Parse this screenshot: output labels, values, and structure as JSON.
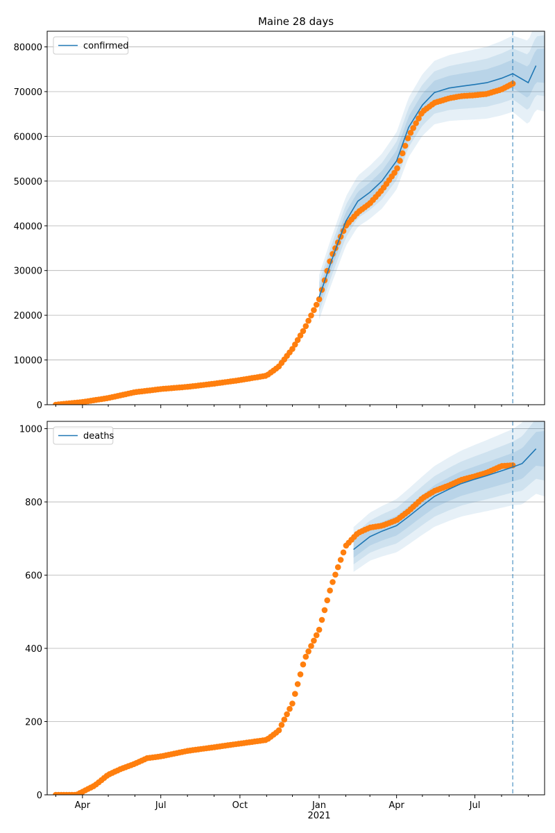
{
  "chart_data": [
    {
      "type": "line",
      "title": "Maine 28 days",
      "xlabel": "",
      "ylabel": "",
      "ylim": [
        0,
        83500
      ],
      "y_ticks": [
        0,
        10000,
        20000,
        30000,
        40000,
        50000,
        60000,
        70000,
        80000
      ],
      "x_ticks": [
        "",
        "",
        "",
        "",
        "",
        "",
        ""
      ],
      "grid": "horizontal",
      "legend": {
        "position": "top-left",
        "entries": [
          "confirmed"
        ]
      },
      "forecast_start": "2021-08-14",
      "colors": {
        "model": "#1f77b4",
        "observed": "#ff7f0e",
        "band": "#1f77b4"
      },
      "series": [
        {
          "name": "confirmed",
          "kind": "model-median",
          "x": [
            "2021-01-01",
            "2021-01-15",
            "2021-02-01",
            "2021-02-15",
            "2021-03-01",
            "2021-03-15",
            "2021-04-01",
            "2021-04-15",
            "2021-05-01",
            "2021-05-15",
            "2021-06-01",
            "2021-06-15",
            "2021-07-01",
            "2021-07-15",
            "2021-08-01",
            "2021-08-14",
            "2021-09-01",
            "2021-09-10"
          ],
          "values": [
            24000,
            32000,
            41000,
            45500,
            47500,
            50000,
            54500,
            62000,
            67000,
            69800,
            70800,
            71200,
            71600,
            72000,
            73000,
            74000,
            72000,
            75800
          ]
        },
        {
          "name": "",
          "kind": "observed",
          "x": [
            "2020-03-01",
            "2020-04-01",
            "2020-05-01",
            "2020-06-01",
            "2020-07-01",
            "2020-08-01",
            "2020-09-01",
            "2020-10-01",
            "2020-11-01",
            "2020-11-15",
            "2020-12-01",
            "2020-12-15",
            "2021-01-01",
            "2021-01-15",
            "2021-02-01",
            "2021-02-15",
            "2021-03-01",
            "2021-03-15",
            "2021-04-01",
            "2021-04-15",
            "2021-05-01",
            "2021-05-15",
            "2021-06-01",
            "2021-06-15",
            "2021-07-01",
            "2021-07-15",
            "2021-08-01",
            "2021-08-14"
          ],
          "values": [
            0,
            600,
            1500,
            2800,
            3500,
            4000,
            4700,
            5500,
            6500,
            8500,
            12500,
            17000,
            23500,
            33000,
            40000,
            43000,
            45000,
            48000,
            52500,
            60000,
            65500,
            67500,
            68500,
            69000,
            69200,
            69500,
            70500,
            71800
          ]
        }
      ]
    },
    {
      "type": "line",
      "title": "",
      "xlabel": "",
      "ylabel": "",
      "ylim": [
        0,
        1020
      ],
      "y_ticks": [
        0,
        200,
        400,
        600,
        800,
        1000
      ],
      "x_ticks": [
        "Apr",
        "Jul",
        "Oct",
        "Jan\n2021",
        "Apr",
        "Jul"
      ],
      "grid": "horizontal",
      "legend": {
        "position": "top-left",
        "entries": [
          "deaths"
        ]
      },
      "forecast_start": "2021-08-14",
      "colors": {
        "model": "#1f77b4",
        "observed": "#ff7f0e",
        "band": "#1f77b4"
      },
      "series": [
        {
          "name": "deaths",
          "kind": "model-median",
          "x": [
            "2021-02-10",
            "2021-03-01",
            "2021-03-15",
            "2021-04-01",
            "2021-04-15",
            "2021-05-01",
            "2021-05-15",
            "2021-06-01",
            "2021-06-15",
            "2021-07-01",
            "2021-07-15",
            "2021-08-01",
            "2021-08-14",
            "2021-08-25",
            "2021-09-10"
          ],
          "values": [
            670,
            705,
            720,
            735,
            760,
            790,
            815,
            835,
            850,
            862,
            872,
            885,
            895,
            905,
            945
          ]
        },
        {
          "name": "",
          "kind": "observed",
          "x": [
            "2020-03-01",
            "2020-03-25",
            "2020-04-15",
            "2020-05-01",
            "2020-05-15",
            "2020-06-01",
            "2020-06-15",
            "2020-07-01",
            "2020-08-01",
            "2020-09-01",
            "2020-10-01",
            "2020-11-01",
            "2020-11-15",
            "2020-12-01",
            "2020-12-15",
            "2021-01-01",
            "2021-01-15",
            "2021-02-01",
            "2021-02-15",
            "2021-03-01",
            "2021-03-15",
            "2021-04-01",
            "2021-04-15",
            "2021-05-01",
            "2021-05-15",
            "2021-06-01",
            "2021-06-15",
            "2021-07-01",
            "2021-07-15",
            "2021-08-01",
            "2021-08-14"
          ],
          "values": [
            0,
            0,
            25,
            55,
            70,
            85,
            100,
            105,
            120,
            130,
            140,
            150,
            175,
            250,
            370,
            450,
            570,
            680,
            715,
            730,
            735,
            750,
            775,
            810,
            830,
            845,
            860,
            870,
            880,
            898,
            900
          ]
        }
      ]
    }
  ]
}
